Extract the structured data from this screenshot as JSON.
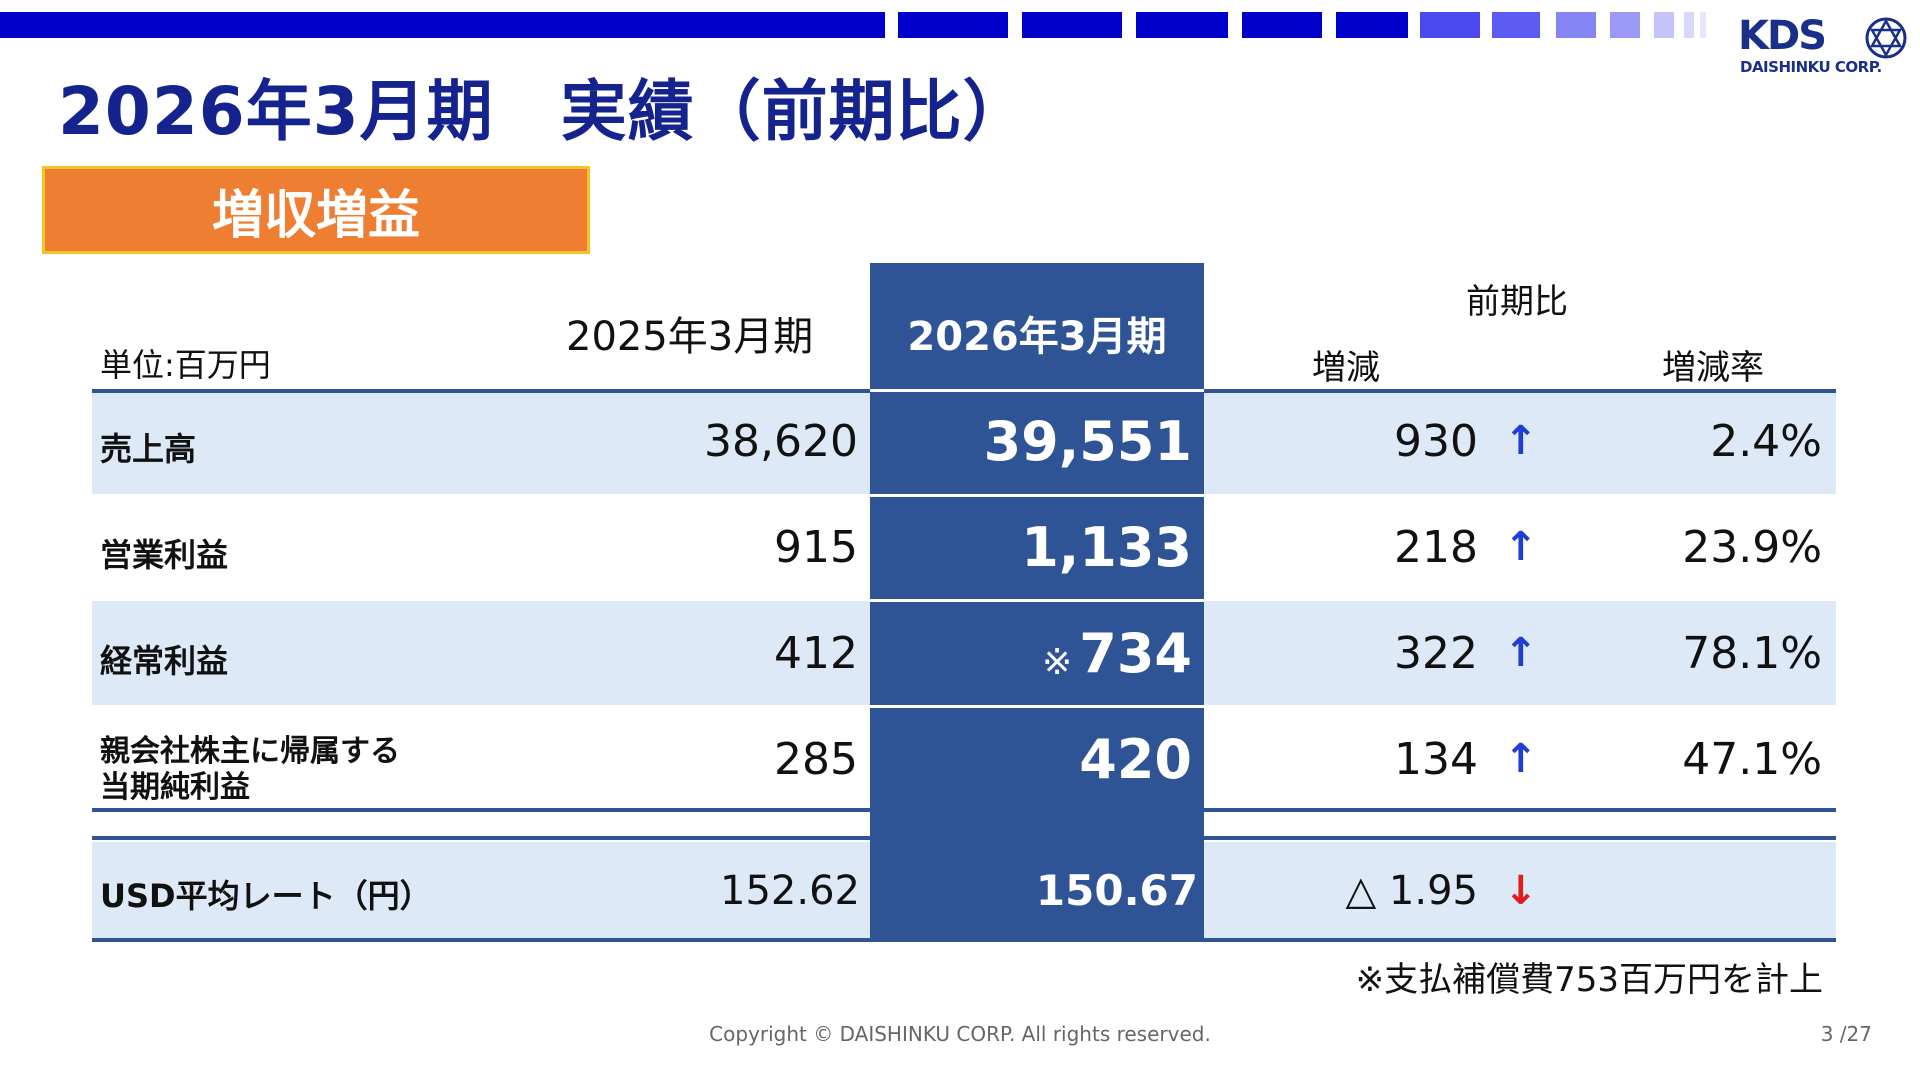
{
  "header": {
    "title": "2026年3月期　実績（前期比）",
    "badge": "増収増益",
    "logo_text": "KDS",
    "logo_sub": "DAISHINKU CORP."
  },
  "table": {
    "unit_label": "単位:百万円",
    "col_prev": "2025年3月期",
    "col_curr": "2026年3月期",
    "col_group": "前期比",
    "col_diff": "増減",
    "col_rate": "増減率",
    "rows": [
      {
        "label": "売上高",
        "prev": "38,620",
        "curr": "39,551",
        "diff": "930",
        "arrow": "↑",
        "rate": "2.4%"
      },
      {
        "label": "営業利益",
        "prev": "915",
        "curr": "1,133",
        "diff": "218",
        "arrow": "↑",
        "rate": "23.9%"
      },
      {
        "label": "経常利益",
        "prev": "412",
        "curr_mark": "※",
        "curr": "734",
        "diff": "322",
        "arrow": "↑",
        "rate": "78.1%"
      },
      {
        "label_line1": "親会社株主に帰属する",
        "label_line2": "当期純利益",
        "prev": "285",
        "curr": "420",
        "diff": "134",
        "arrow": "↑",
        "rate": "47.1%"
      }
    ],
    "usd": {
      "label": "USD平均レート（円）",
      "prev": "152.62",
      "curr": "150.67",
      "diff": "△ 1.95",
      "arrow": "↓"
    }
  },
  "note": "※支払補償費753百万円を計上",
  "footer": {
    "copyright": "Copyright © DAISHINKU CORP. All rights reserved.",
    "page": "3 /27"
  },
  "colors": {
    "title": "#14238e",
    "table_dark": "#2f5496",
    "row_light": "#dde9f6",
    "badge": "#ee7e32",
    "badge_border": "#f6c324",
    "arrow_up": "#1f3ed6",
    "arrow_down": "#e01d1d"
  }
}
